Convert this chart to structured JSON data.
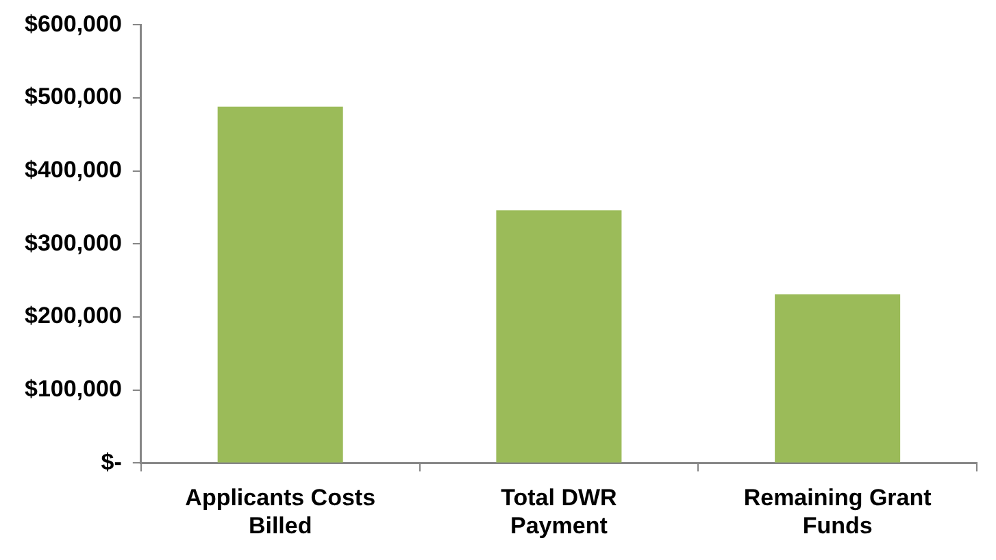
{
  "chart_data": {
    "type": "bar",
    "categories": [
      "Applicants Costs Billed",
      "Total DWR Payment",
      "Remaining Grant Funds"
    ],
    "values": [
      488000,
      346000,
      231000
    ],
    "color": "#9bbb59",
    "ylim": [
      0,
      600000
    ],
    "yticks": [
      {
        "value": 0,
        "label": "$-"
      },
      {
        "value": 100000,
        "label": "$100,000"
      },
      {
        "value": 200000,
        "label": "$200,000"
      },
      {
        "value": 300000,
        "label": "$300,000"
      },
      {
        "value": 400000,
        "label": "$400,000"
      },
      {
        "value": 500000,
        "label": "$500,000"
      },
      {
        "value": 600000,
        "label": "$600,000"
      }
    ],
    "grid": false,
    "legend": false
  }
}
